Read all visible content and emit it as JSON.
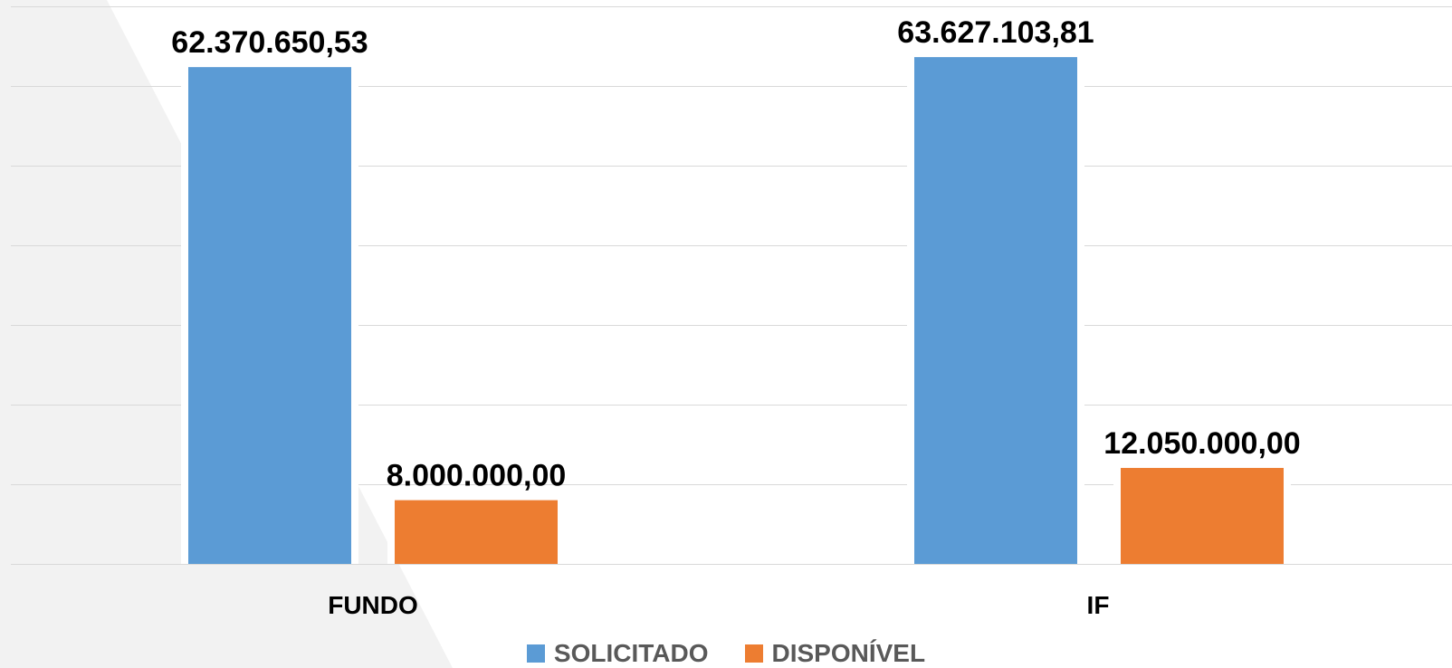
{
  "colors": {
    "solicitado": "#5B9BD5",
    "disponivel": "#ED7D31",
    "gridline": "#D9D9D9",
    "decorative_shape": "#F2F2F2",
    "label_text": "#000000",
    "legend_text": "#595959"
  },
  "chart_data": {
    "type": "bar",
    "title": "",
    "xlabel": "",
    "ylabel": "",
    "categories": [
      "FUNDO",
      "IF"
    ],
    "series": [
      {
        "name": "SOLICITADO",
        "values": [
          62370650.53,
          63627103.81
        ],
        "labels": [
          "62.370.650,53",
          "63.627.103,81"
        ]
      },
      {
        "name": "DISPONÍVEL",
        "values": [
          8000000.0,
          12050000.0
        ],
        "labels": [
          "8.000.000,00",
          "12.050.000,00"
        ]
      }
    ],
    "ylim": [
      0,
      70000000
    ],
    "y_axis_visible": false,
    "gridlines": true,
    "gridline_step": 10000000,
    "legend_position": "bottom"
  }
}
